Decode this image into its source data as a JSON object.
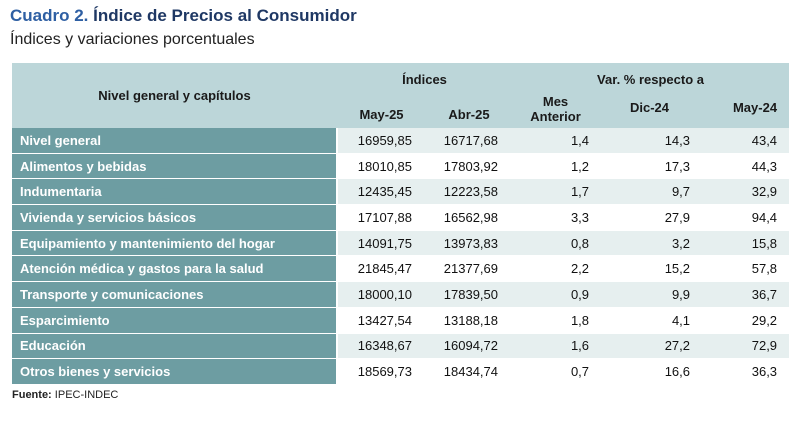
{
  "title": {
    "prefix": "Cuadro 2.",
    "main": "Índice de Precios al Consumidor"
  },
  "subtitle": "Índices y variaciones porcentuales",
  "table": {
    "header": {
      "first_col": "Nivel general y capítulos",
      "indices_group": "Índices",
      "var_group": "Var. % respecto a",
      "may25": "May-25",
      "abr25": "Abr-25",
      "mes_line1": "Mes",
      "mes_line2": "Anterior",
      "dic24": "Dic-24",
      "may24": "May-24"
    },
    "rows": [
      {
        "label": "Nivel general",
        "may25": "16959,85",
        "abr25": "16717,68",
        "mes": "1,4",
        "dic": "14,3",
        "may24": "43,4"
      },
      {
        "label": "Alimentos y bebidas",
        "may25": "18010,85",
        "abr25": "17803,92",
        "mes": "1,2",
        "dic": "17,3",
        "may24": "44,3"
      },
      {
        "label": "Indumentaria",
        "may25": "12435,45",
        "abr25": "12223,58",
        "mes": "1,7",
        "dic": "9,7",
        "may24": "32,9"
      },
      {
        "label": "Vivienda y servicios básicos",
        "may25": "17107,88",
        "abr25": "16562,98",
        "mes": "3,3",
        "dic": "27,9",
        "may24": "94,4"
      },
      {
        "label": "Equipamiento y mantenimiento del hogar",
        "may25": "14091,75",
        "abr25": "13973,83",
        "mes": "0,8",
        "dic": "3,2",
        "may24": "15,8"
      },
      {
        "label": "Atención médica y gastos para la salud",
        "may25": "21845,47",
        "abr25": "21377,69",
        "mes": "2,2",
        "dic": "15,2",
        "may24": "57,8"
      },
      {
        "label": "Transporte y comunicaciones",
        "may25": "18000,10",
        "abr25": "17839,50",
        "mes": "0,9",
        "dic": "9,9",
        "may24": "36,7"
      },
      {
        "label": "Esparcimiento",
        "may25": "13427,54",
        "abr25": "13188,18",
        "mes": "1,8",
        "dic": "4,1",
        "may24": "29,2"
      },
      {
        "label": "Educación",
        "may25": "16348,67",
        "abr25": "16094,72",
        "mes": "1,6",
        "dic": "27,2",
        "may24": "72,9"
      },
      {
        "label": "Otros bienes y servicios",
        "may25": "18569,73",
        "abr25": "18434,74",
        "mes": "0,7",
        "dic": "16,6",
        "may24": "36,3"
      }
    ]
  },
  "source": {
    "label": "Fuente:",
    "value": "IPEC-INDEC"
  },
  "colors": {
    "header_bg": "#bcd6d9",
    "label_bg": "#6d9da2",
    "stripe": "#e6efef",
    "title_blue": "#1f3864"
  }
}
